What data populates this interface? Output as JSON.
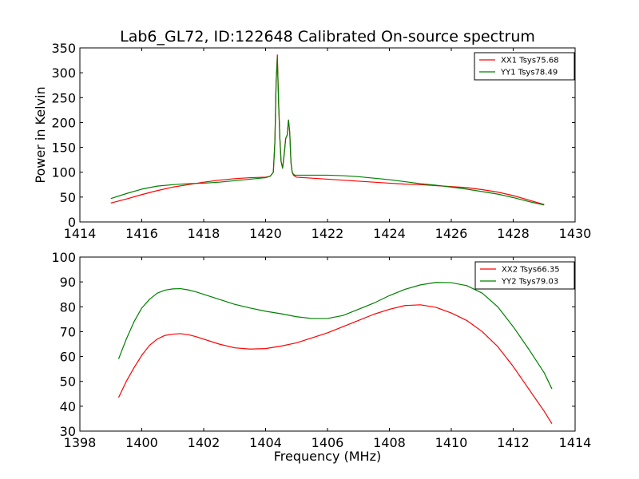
{
  "figure": {
    "title": "Lab6_GL72, ID:122648 Calibrated On-source spectrum"
  },
  "chart_data": [
    {
      "type": "line",
      "title": "Lab6_GL72, ID:122648 Calibrated On-source spectrum",
      "xlabel": "",
      "ylabel": "Power in Kelvin",
      "xlim": [
        1414,
        1430
      ],
      "ylim": [
        0,
        350
      ],
      "xticks": [
        "1414",
        "1416",
        "1418",
        "1420",
        "1422",
        "1424",
        "1426",
        "1428",
        "1430"
      ],
      "yticks": [
        "0",
        "50",
        "100",
        "150",
        "200",
        "250",
        "300",
        "350"
      ],
      "legend": "top-right",
      "grid": false,
      "series": [
        {
          "name": "XX1 Tsys75.68",
          "color": "#ff0000",
          "x": [
            1415.0,
            1415.5,
            1416.0,
            1416.5,
            1417.0,
            1417.5,
            1418.0,
            1418.5,
            1419.0,
            1419.5,
            1420.0,
            1420.15,
            1420.25,
            1420.3,
            1420.34,
            1420.38,
            1420.42,
            1420.46,
            1420.5,
            1420.55,
            1420.6,
            1420.65,
            1420.7,
            1420.74,
            1420.78,
            1420.82,
            1420.86,
            1420.9,
            1420.95,
            1421.0,
            1421.5,
            1422.0,
            1422.5,
            1423.0,
            1423.5,
            1424.0,
            1424.5,
            1425.0,
            1425.5,
            1426.0,
            1426.5,
            1427.0,
            1427.5,
            1428.0,
            1428.5,
            1429.0
          ],
          "values": [
            38,
            46,
            55,
            63,
            70,
            75,
            80,
            84,
            87,
            89,
            90,
            92,
            100,
            160,
            280,
            336,
            240,
            170,
            122,
            108,
            135,
            168,
            175,
            205,
            180,
            120,
            100,
            94,
            92,
            90,
            88,
            86,
            84,
            82,
            80,
            78,
            76,
            75,
            73,
            71,
            69,
            65,
            60,
            53,
            44,
            35
          ]
        },
        {
          "name": "YY1 Tsys78.49",
          "color": "#008000",
          "x": [
            1415.0,
            1415.5,
            1416.0,
            1416.5,
            1417.0,
            1417.5,
            1418.0,
            1418.5,
            1419.0,
            1419.5,
            1420.0,
            1420.15,
            1420.25,
            1420.3,
            1420.34,
            1420.38,
            1420.42,
            1420.46,
            1420.5,
            1420.55,
            1420.6,
            1420.65,
            1420.7,
            1420.74,
            1420.78,
            1420.82,
            1420.86,
            1420.9,
            1420.95,
            1421.0,
            1421.5,
            1422.0,
            1422.5,
            1423.0,
            1423.5,
            1424.0,
            1424.5,
            1425.0,
            1425.5,
            1426.0,
            1426.5,
            1427.0,
            1427.5,
            1428.0,
            1428.5,
            1429.0
          ],
          "values": [
            47,
            57,
            66,
            72,
            75,
            77,
            78,
            80,
            83,
            86,
            89,
            92,
            100,
            160,
            280,
            331,
            240,
            170,
            122,
            108,
            135,
            168,
            175,
            205,
            180,
            120,
            100,
            96,
            94,
            94,
            94,
            94,
            93,
            91,
            88,
            85,
            81,
            77,
            74,
            70,
            66,
            61,
            56,
            49,
            41,
            34
          ]
        }
      ]
    },
    {
      "type": "line",
      "title": "",
      "xlabel": "Frequency (MHz)",
      "ylabel": "",
      "xlim": [
        1398,
        1414
      ],
      "ylim": [
        30,
        100
      ],
      "xticks": [
        "1398",
        "1400",
        "1402",
        "1404",
        "1406",
        "1408",
        "1410",
        "1412",
        "1414"
      ],
      "yticks": [
        "30",
        "40",
        "50",
        "60",
        "70",
        "80",
        "90",
        "100"
      ],
      "legend": "top-right",
      "grid": false,
      "series": [
        {
          "name": "XX2 Tsys66.35",
          "color": "#ff0000",
          "x": [
            1399.25,
            1399.5,
            1399.75,
            1400.0,
            1400.25,
            1400.5,
            1400.75,
            1401.0,
            1401.25,
            1401.5,
            1401.75,
            1402.0,
            1402.5,
            1403.0,
            1403.5,
            1404.0,
            1404.5,
            1405.0,
            1405.5,
            1406.0,
            1406.5,
            1407.0,
            1407.5,
            1408.0,
            1408.5,
            1409.0,
            1409.5,
            1410.0,
            1410.5,
            1411.0,
            1411.5,
            1412.0,
            1412.5,
            1413.0,
            1413.25
          ],
          "values": [
            43.5,
            50,
            55.5,
            60.5,
            64.5,
            67,
            68.5,
            69,
            69.2,
            68.8,
            68,
            67,
            65,
            63.5,
            63,
            63.2,
            64.2,
            65.5,
            67.5,
            69.5,
            72,
            74.5,
            77,
            79,
            80.5,
            80.8,
            79.8,
            77.5,
            74.5,
            70,
            64,
            56,
            47,
            38,
            33
          ]
        },
        {
          "name": "YY2 Tsys79.03",
          "color": "#008000",
          "x": [
            1399.25,
            1399.5,
            1399.75,
            1400.0,
            1400.25,
            1400.5,
            1400.75,
            1401.0,
            1401.25,
            1401.5,
            1401.75,
            1402.0,
            1402.5,
            1403.0,
            1403.5,
            1404.0,
            1404.5,
            1405.0,
            1405.5,
            1406.0,
            1406.5,
            1407.0,
            1407.5,
            1408.0,
            1408.5,
            1409.0,
            1409.5,
            1410.0,
            1410.5,
            1411.0,
            1411.5,
            1412.0,
            1412.5,
            1413.0,
            1413.25
          ],
          "values": [
            59,
            67,
            74,
            79.5,
            83,
            85.5,
            86.7,
            87.2,
            87.3,
            86.8,
            86,
            85,
            83,
            81,
            79.5,
            78.2,
            77.2,
            76,
            75.3,
            75.3,
            76.5,
            79,
            81.5,
            84.5,
            87,
            88.8,
            89.8,
            89.7,
            88.5,
            85.5,
            80,
            72,
            63,
            53.5,
            47
          ]
        }
      ]
    }
  ]
}
